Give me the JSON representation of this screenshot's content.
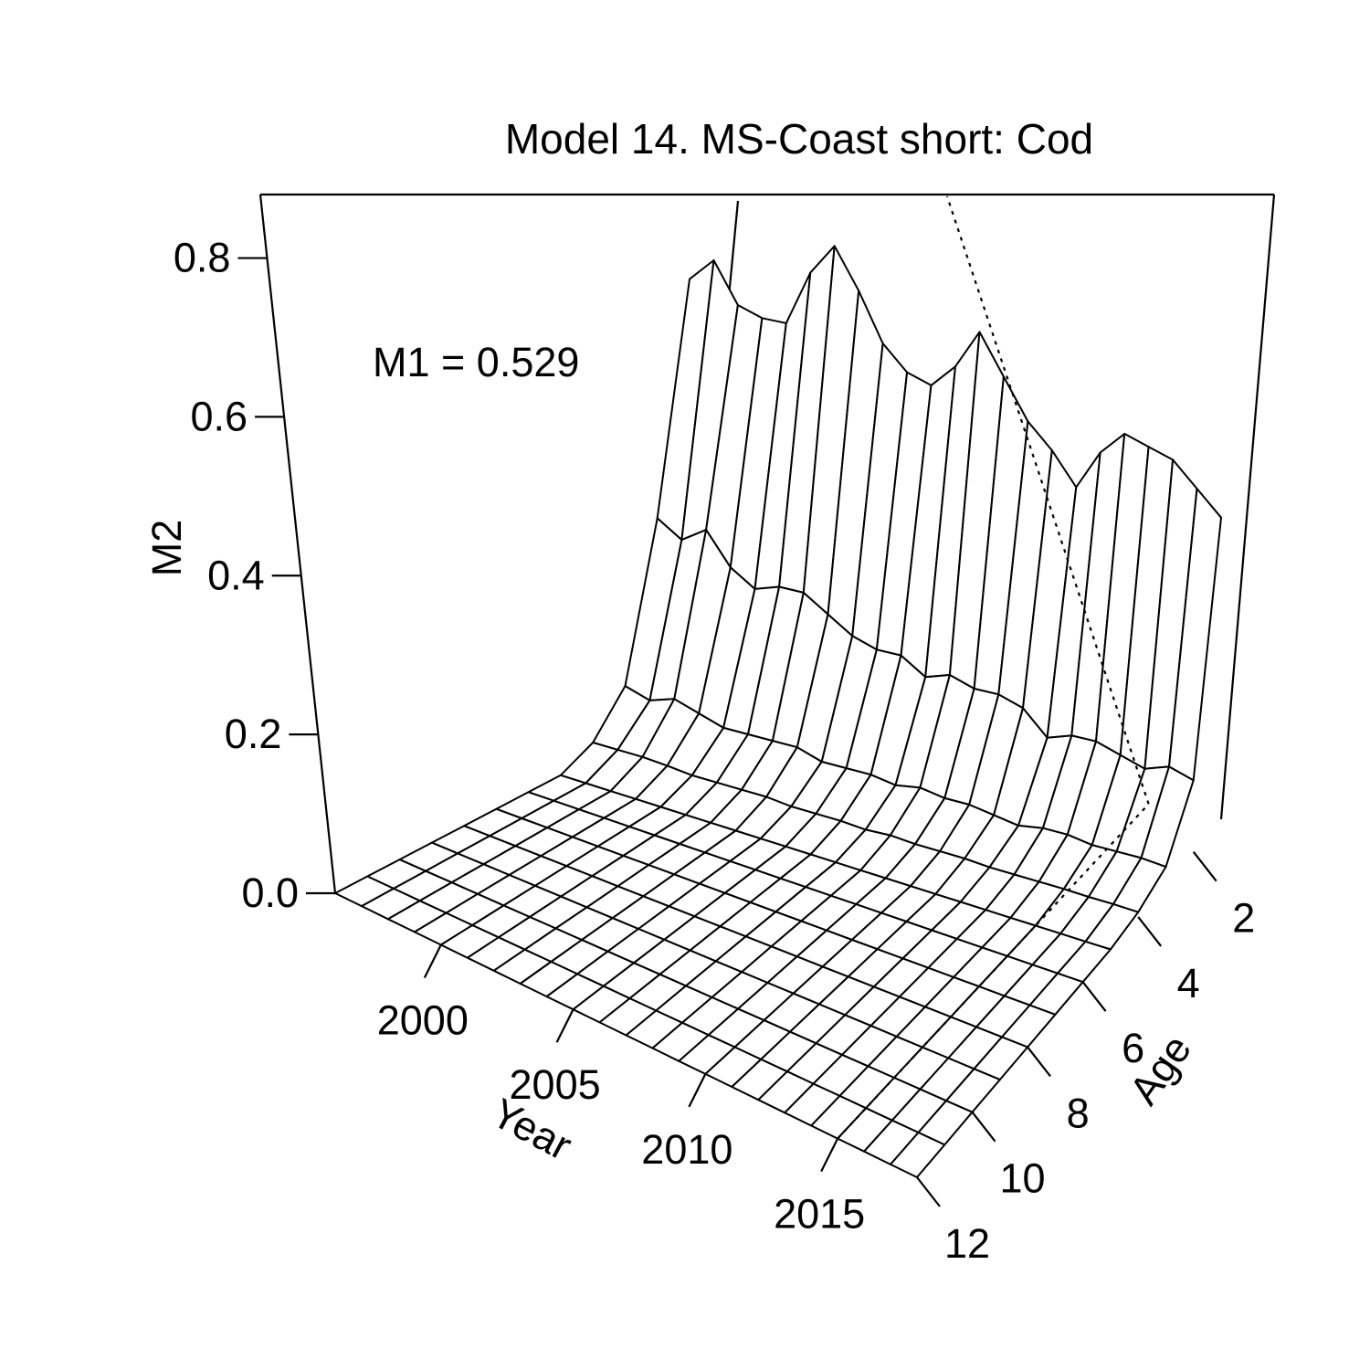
{
  "chart_data": {
    "type": "surface3d",
    "title": "Model 14. MS-Coast short: Cod",
    "annotation": "M1 = 0.529",
    "xlabel": "Year",
    "ylabel": "Age",
    "zlabel": "M2",
    "xlim": [
      1996,
      2018
    ],
    "ylim": [
      1,
      12
    ],
    "zlim": [
      0,
      0.88
    ],
    "x_ticks": [
      2000,
      2005,
      2010,
      2015
    ],
    "y_ticks": [
      2,
      4,
      6,
      8,
      10,
      12
    ],
    "z_ticks": [
      "0.0",
      "0.2",
      "0.4",
      "0.6",
      "0.8"
    ],
    "z_tick_values": [
      0,
      0.2,
      0.4,
      0.6,
      0.8
    ],
    "reference_year": 2015,
    "years": [
      1996,
      1997,
      1998,
      1999,
      2000,
      2001,
      2002,
      2003,
      2004,
      2005,
      2006,
      2007,
      2008,
      2009,
      2010,
      2011,
      2012,
      2013,
      2014,
      2015,
      2016,
      2017,
      2018
    ],
    "ages": [
      1,
      2,
      3,
      4,
      5,
      6,
      7,
      8,
      9,
      10,
      11,
      12
    ],
    "M2_age1": [
      0.54,
      0.57,
      0.52,
      0.51,
      0.51,
      0.58,
      0.62,
      0.57,
      0.51,
      0.48,
      0.47,
      0.5,
      0.55,
      0.5,
      0.45,
      0.42,
      0.38,
      0.43,
      0.46,
      0.45,
      0.44,
      0.41,
      0.38
    ],
    "M2_age2": [
      0.26,
      0.24,
      0.26,
      0.22,
      0.2,
      0.21,
      0.21,
      0.19,
      0.17,
      0.16,
      0.16,
      0.14,
      0.15,
      0.14,
      0.14,
      0.13,
      0.1,
      0.11,
      0.11,
      0.1,
      0.09,
      0.1,
      0.09
    ],
    "M2_age3": [
      0.07,
      0.06,
      0.07,
      0.06,
      0.05,
      0.05,
      0.05,
      0.05,
      0.04,
      0.04,
      0.04,
      0.035,
      0.04,
      0.035,
      0.035,
      0.03,
      0.025,
      0.03,
      0.03,
      0.025,
      0.025,
      0.025,
      0.022
    ],
    "M2_age4": [
      0.02,
      0.02,
      0.02,
      0.018,
      0.015,
      0.015,
      0.015,
      0.015,
      0.012,
      0.012,
      0.012,
      0.01,
      0.012,
      0.01,
      0.01,
      0.01,
      0.008,
      0.008,
      0.008,
      0.008,
      0.007,
      0.007,
      0.006
    ]
  }
}
